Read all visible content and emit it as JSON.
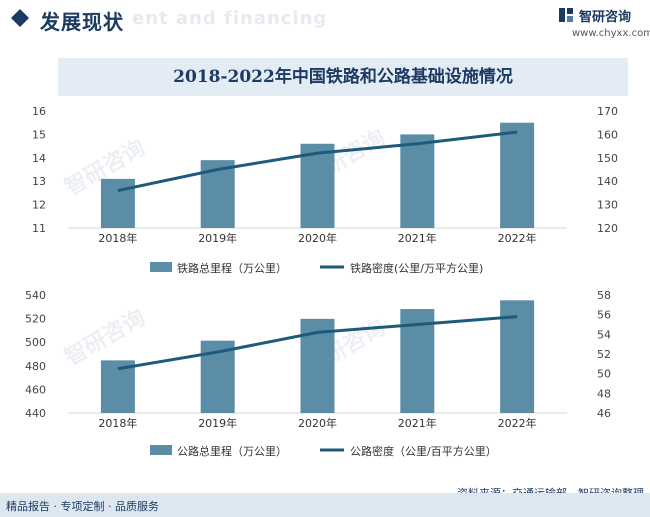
{
  "header": {
    "section_title": "发展现状",
    "bg_text": "ent and financing",
    "logo_name": "智研咨询",
    "logo_url": "www.chyxx.com"
  },
  "chart_title": "2018-2022年中国铁路和公路基础设施情况",
  "footer": {
    "left": "精品报告 · 专项定制 · 品质服务",
    "source": "资料来源：交通运输部、智研咨询整理"
  },
  "watermark": "智研咨询",
  "colors": {
    "bar": "#5b8ea6",
    "line": "#1e5a7c",
    "title": "#1d3a63"
  },
  "chart_data": [
    {
      "type": "bar",
      "categories": [
        "2018年",
        "2019年",
        "2020年",
        "2021年",
        "2022年"
      ],
      "series": [
        {
          "name": "铁路总里程（万公里）",
          "type": "bar",
          "axis": "left",
          "values": [
            13.1,
            13.9,
            14.6,
            15.0,
            15.5
          ]
        },
        {
          "name": "铁路密度(公里/万平方公里)",
          "type": "line",
          "axis": "right",
          "values": [
            136,
            145,
            152,
            156,
            161
          ]
        }
      ],
      "ylim_left": [
        11,
        16
      ],
      "yticks_left": [
        11,
        12,
        13,
        14,
        15,
        16
      ],
      "ylim_right": [
        120,
        170
      ],
      "yticks_right": [
        120,
        130,
        140,
        150,
        160,
        170
      ],
      "legend": "bottom"
    },
    {
      "type": "bar",
      "categories": [
        "2018年",
        "2019年",
        "2020年",
        "2021年",
        "2022年"
      ],
      "series": [
        {
          "name": "公路总里程（万公里）",
          "type": "bar",
          "axis": "left",
          "values": [
            484.6,
            501.3,
            519.8,
            528.1,
            535.5
          ]
        },
        {
          "name": "公路密度（公里/百平方公里）",
          "type": "line",
          "axis": "right",
          "values": [
            50.5,
            52.2,
            54.2,
            55.0,
            55.8
          ]
        }
      ],
      "ylim_left": [
        440,
        540
      ],
      "yticks_left": [
        440,
        460,
        480,
        500,
        520,
        540
      ],
      "ylim_right": [
        46,
        58
      ],
      "yticks_right": [
        46,
        48,
        50,
        52,
        54,
        56,
        58
      ],
      "legend": "bottom"
    }
  ]
}
